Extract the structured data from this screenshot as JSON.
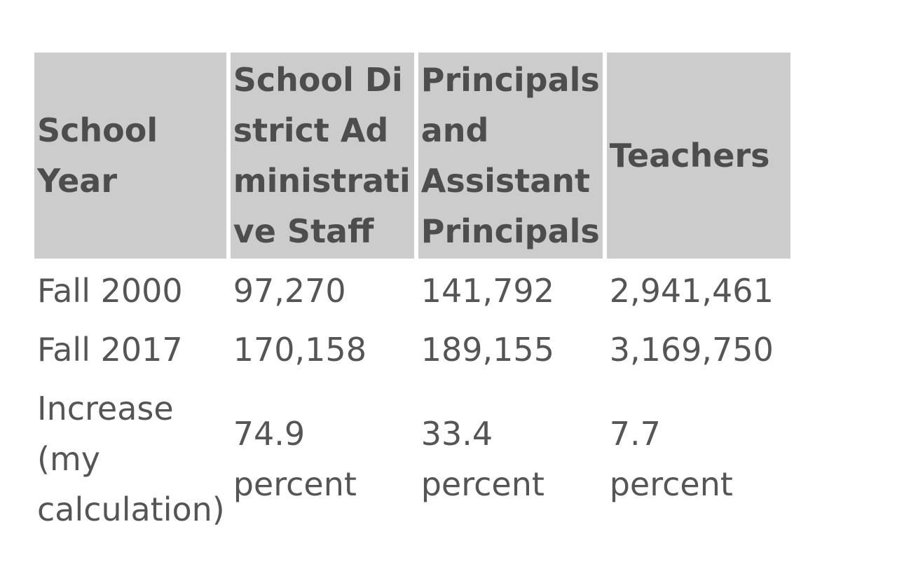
{
  "table": {
    "headers": [
      "School Year",
      "School District Administrative Staff",
      "Principals and Assistant Principals",
      "Teachers"
    ],
    "rows": [
      [
        "Fall 2000",
        "97,270",
        "141,792",
        "2,941,461"
      ],
      [
        "Fall 2017",
        "170,158",
        "189,155",
        "3,169,750"
      ],
      [
        "Increase (my calculation)",
        "74.9 percent",
        "33.4 percent",
        "7.7 percent"
      ]
    ]
  }
}
